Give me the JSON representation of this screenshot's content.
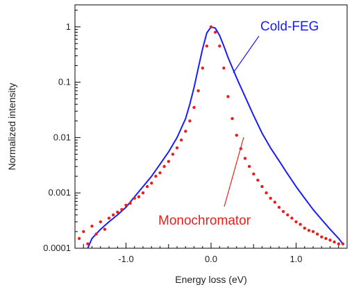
{
  "chart_data": {
    "type": "line",
    "xlabel": "Energy loss (eV)",
    "ylabel": "Normalized intensity",
    "xlim": [
      -1.6,
      1.6
    ],
    "ylim": [
      0.0001,
      2.5
    ],
    "y_scale": "log",
    "grid": false,
    "x_ticks": [
      {
        "value": -1.0,
        "label": "-1.0"
      },
      {
        "value": 0.0,
        "label": "0.0"
      },
      {
        "value": 1.0,
        "label": "1.0"
      }
    ],
    "y_ticks": [
      {
        "value": 1,
        "label": "1"
      },
      {
        "value": 0.1,
        "label": "0.1"
      },
      {
        "value": 0.01,
        "label": "0.01"
      },
      {
        "value": 0.001,
        "label": "0.001"
      },
      {
        "value": 0.0001,
        "label": "0.0001"
      }
    ],
    "series": [
      {
        "name": "Cold-FEG",
        "style": "line",
        "color": "#1a1aff",
        "x": [
          -1.5,
          -1.45,
          -1.4,
          -1.3,
          -1.2,
          -1.1,
          -1.0,
          -0.9,
          -0.8,
          -0.7,
          -0.6,
          -0.5,
          -0.4,
          -0.3,
          -0.25,
          -0.2,
          -0.15,
          -0.1,
          -0.05,
          0.0,
          0.05,
          0.1,
          0.15,
          0.2,
          0.3,
          0.4,
          0.5,
          0.6,
          0.7,
          0.8,
          0.9,
          1.0,
          1.1,
          1.2,
          1.3,
          1.4,
          1.5,
          1.55
        ],
        "y": [
          7e-05,
          0.0001,
          0.00015,
          0.00022,
          0.0003,
          0.0004,
          0.00055,
          0.00085,
          0.0013,
          0.002,
          0.0033,
          0.0055,
          0.01,
          0.022,
          0.04,
          0.08,
          0.18,
          0.4,
          0.78,
          1.0,
          0.95,
          0.7,
          0.45,
          0.28,
          0.12,
          0.055,
          0.025,
          0.012,
          0.0065,
          0.0038,
          0.0022,
          0.0013,
          0.0008,
          0.0005,
          0.00033,
          0.00022,
          0.00015,
          0.00012
        ]
      },
      {
        "name": "Monochromator",
        "style": "dots",
        "color": "#e8201c",
        "x": [
          -1.55,
          -1.5,
          -1.45,
          -1.4,
          -1.35,
          -1.3,
          -1.25,
          -1.2,
          -1.15,
          -1.1,
          -1.05,
          -1.0,
          -0.95,
          -0.9,
          -0.85,
          -0.8,
          -0.75,
          -0.7,
          -0.65,
          -0.6,
          -0.55,
          -0.5,
          -0.45,
          -0.4,
          -0.35,
          -0.3,
          -0.25,
          -0.2,
          -0.15,
          -0.1,
          -0.05,
          0.0,
          0.05,
          0.1,
          0.15,
          0.2,
          0.25,
          0.3,
          0.35,
          0.4,
          0.45,
          0.5,
          0.55,
          0.6,
          0.65,
          0.7,
          0.75,
          0.8,
          0.85,
          0.9,
          0.95,
          1.0,
          1.05,
          1.1,
          1.15,
          1.2,
          1.25,
          1.3,
          1.35,
          1.4,
          1.45,
          1.5,
          1.55
        ],
        "y": [
          0.00015,
          0.0002,
          0.00012,
          0.00025,
          0.00018,
          0.0003,
          0.00022,
          0.00035,
          0.0004,
          0.00045,
          0.0005,
          0.0006,
          0.00065,
          0.0008,
          0.00085,
          0.001,
          0.0013,
          0.0015,
          0.002,
          0.0023,
          0.003,
          0.0037,
          0.005,
          0.0065,
          0.009,
          0.013,
          0.02,
          0.035,
          0.07,
          0.18,
          0.45,
          1.0,
          0.8,
          0.45,
          0.18,
          0.055,
          0.022,
          0.011,
          0.0063,
          0.0042,
          0.003,
          0.0022,
          0.0017,
          0.0013,
          0.001,
          0.0008,
          0.00068,
          0.00055,
          0.00046,
          0.0004,
          0.00035,
          0.0003,
          0.00027,
          0.00023,
          0.00021,
          0.0002,
          0.00018,
          0.00016,
          0.00015,
          0.00014,
          0.00013,
          0.00012,
          0.00012
        ]
      }
    ],
    "annotations": [
      {
        "text": "Cold-FEG",
        "color": "#1a1aff"
      },
      {
        "text": "Monochromator",
        "color": "#e8201c"
      }
    ]
  }
}
